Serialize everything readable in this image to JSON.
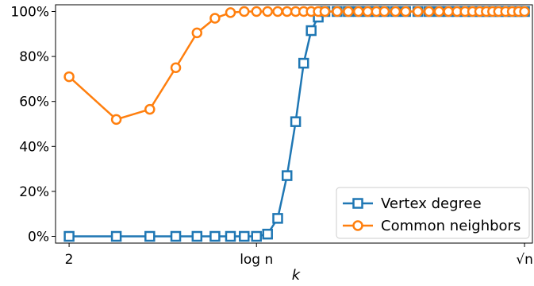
{
  "chart_data": {
    "type": "line",
    "title": "",
    "xlabel": "k",
    "ylabel": "",
    "x_scale": "log",
    "xlim": [
      1.78,
      107
    ],
    "ylim": [
      -3,
      103
    ],
    "x_ticks": [
      {
        "value": 2,
        "label": "2"
      },
      {
        "value": 10,
        "label": "log n"
      },
      {
        "value": 100,
        "label": "√n"
      }
    ],
    "y_ticks": [
      0,
      20,
      40,
      60,
      80,
      100
    ],
    "y_tick_labels": [
      "0%",
      "20%",
      "40%",
      "60%",
      "80%",
      "100%"
    ],
    "grid": false,
    "legend": "bottom-right",
    "series": [
      {
        "name": "Vertex degree",
        "color": "#1f77b4",
        "marker": "square",
        "x": [
          2,
          3,
          4,
          5,
          6,
          7,
          8,
          9,
          10,
          11,
          12,
          13,
          14,
          15,
          16,
          17,
          18,
          20,
          22,
          24,
          26,
          28,
          30,
          33,
          36,
          40,
          44,
          48,
          52,
          56,
          60,
          64,
          68,
          72,
          76,
          80,
          85,
          90,
          95,
          100
        ],
        "y": [
          0,
          0,
          0,
          0,
          0,
          0,
          0,
          0,
          0,
          1,
          8,
          27,
          51,
          77,
          91.5,
          97.5,
          100,
          100,
          100,
          100,
          100,
          100,
          100,
          100,
          100,
          100,
          100,
          100,
          100,
          100,
          100,
          100,
          100,
          100,
          100,
          100,
          100,
          100,
          100,
          100
        ]
      },
      {
        "name": "Common neighbors",
        "color": "#ff7f0e",
        "marker": "circle",
        "x": [
          2,
          3,
          4,
          5,
          6,
          7,
          8,
          9,
          10,
          11,
          12,
          13,
          14,
          15,
          16,
          17,
          18,
          20,
          22,
          24,
          26,
          28,
          30,
          33,
          36,
          40,
          44,
          48,
          52,
          56,
          60,
          64,
          68,
          72,
          76,
          80,
          85,
          90,
          95,
          100
        ],
        "y": [
          71,
          52,
          56.5,
          75,
          90.5,
          97,
          99.5,
          100,
          100,
          100,
          100,
          100,
          100,
          100,
          100,
          100,
          100,
          100,
          100,
          100,
          100,
          100,
          100,
          100,
          100,
          100,
          100,
          100,
          100,
          100,
          100,
          100,
          100,
          100,
          100,
          100,
          100,
          100,
          100,
          100
        ]
      }
    ]
  }
}
